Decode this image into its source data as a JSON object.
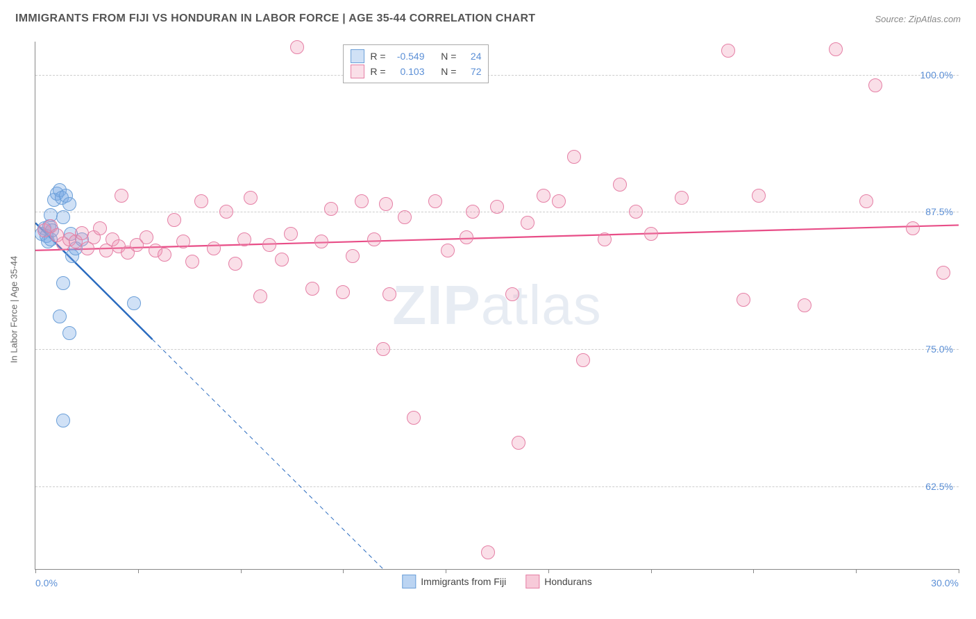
{
  "title": "IMMIGRANTS FROM FIJI VS HONDURAN IN LABOR FORCE | AGE 35-44 CORRELATION CHART",
  "source": "Source: ZipAtlas.com",
  "ylabel": "In Labor Force | Age 35-44",
  "watermark_bold": "ZIP",
  "watermark_rest": "atlas",
  "chart": {
    "type": "scatter",
    "background_color": "#ffffff",
    "grid_color": "#cccccc",
    "axis_color": "#888888",
    "tick_label_color": "#5b8fd6",
    "xlim": [
      0,
      30
    ],
    "ylim": [
      55,
      103
    ],
    "ytick_values": [
      62.5,
      75.0,
      87.5,
      100.0
    ],
    "ytick_labels": [
      "62.5%",
      "75.0%",
      "87.5%",
      "100.0%"
    ],
    "xtick_values": [
      0,
      3.33,
      6.67,
      10,
      13.33,
      16.67,
      20,
      23.33,
      26.67,
      30
    ],
    "xtick_labels_shown": {
      "0": "0.0%",
      "30": "30.0%"
    },
    "marker_radius": 9,
    "marker_stroke_width": 1.5,
    "series": [
      {
        "name": "Immigrants from Fiji",
        "fill": "rgba(120,170,230,0.35)",
        "stroke": "#6b9fd8",
        "r_label": "R =",
        "r_value": "-0.549",
        "n_label": "N =",
        "n_value": "24",
        "trend": {
          "x1": 0,
          "y1": 86.5,
          "x2": 11.3,
          "y2": 55,
          "solid_until_x": 3.8,
          "stroke": "#2a6bbf",
          "width": 2.5
        },
        "points": [
          [
            0.2,
            85.5
          ],
          [
            0.3,
            86.0
          ],
          [
            0.35,
            85.3
          ],
          [
            0.4,
            84.8
          ],
          [
            0.45,
            86.2
          ],
          [
            0.5,
            85.0
          ],
          [
            0.55,
            85.8
          ],
          [
            0.5,
            87.2
          ],
          [
            0.6,
            88.6
          ],
          [
            0.7,
            89.2
          ],
          [
            0.8,
            89.5
          ],
          [
            0.85,
            88.8
          ],
          [
            0.9,
            87.0
          ],
          [
            1.0,
            89.0
          ],
          [
            1.1,
            88.2
          ],
          [
            1.15,
            85.5
          ],
          [
            1.2,
            83.5
          ],
          [
            1.3,
            84.2
          ],
          [
            0.9,
            81.0
          ],
          [
            1.1,
            76.5
          ],
          [
            0.8,
            78.0
          ],
          [
            3.2,
            79.2
          ],
          [
            0.9,
            68.5
          ],
          [
            1.5,
            85.0
          ]
        ]
      },
      {
        "name": "Hondurans",
        "fill": "rgba(240,150,180,0.30)",
        "stroke": "#e57fa5",
        "r_label": "R =",
        "r_value": "0.103",
        "n_label": "N =",
        "n_value": "72",
        "trend": {
          "x1": 0,
          "y1": 84.0,
          "x2": 30,
          "y2": 86.3,
          "solid_until_x": 30,
          "stroke": "#e84d87",
          "width": 2.2
        },
        "points": [
          [
            0.3,
            85.8
          ],
          [
            0.5,
            86.2
          ],
          [
            0.7,
            85.4
          ],
          [
            0.9,
            84.6
          ],
          [
            1.1,
            85.0
          ],
          [
            1.3,
            84.8
          ],
          [
            1.5,
            85.6
          ],
          [
            1.7,
            84.2
          ],
          [
            1.9,
            85.2
          ],
          [
            2.1,
            86.0
          ],
          [
            2.3,
            84.0
          ],
          [
            2.5,
            85.0
          ],
          [
            2.7,
            84.4
          ],
          [
            2.8,
            89.0
          ],
          [
            3.0,
            83.8
          ],
          [
            3.3,
            84.5
          ],
          [
            3.6,
            85.2
          ],
          [
            3.9,
            84.0
          ],
          [
            4.2,
            83.6
          ],
          [
            4.5,
            86.8
          ],
          [
            4.8,
            84.8
          ],
          [
            5.1,
            83.0
          ],
          [
            5.4,
            88.5
          ],
          [
            5.8,
            84.2
          ],
          [
            6.2,
            87.5
          ],
          [
            6.5,
            82.8
          ],
          [
            6.8,
            85.0
          ],
          [
            7.0,
            88.8
          ],
          [
            7.3,
            79.8
          ],
          [
            7.6,
            84.5
          ],
          [
            8.0,
            83.2
          ],
          [
            8.3,
            85.5
          ],
          [
            8.5,
            102.5
          ],
          [
            9.0,
            80.5
          ],
          [
            9.3,
            84.8
          ],
          [
            9.6,
            87.8
          ],
          [
            10.0,
            80.2
          ],
          [
            10.3,
            83.5
          ],
          [
            10.6,
            88.5
          ],
          [
            11.0,
            85.0
          ],
          [
            11.3,
            75.0
          ],
          [
            11.4,
            88.2
          ],
          [
            11.5,
            80.0
          ],
          [
            12.0,
            87.0
          ],
          [
            12.3,
            68.8
          ],
          [
            13.0,
            88.5
          ],
          [
            13.4,
            84.0
          ],
          [
            14.0,
            85.2
          ],
          [
            14.2,
            87.5
          ],
          [
            14.7,
            56.5
          ],
          [
            15.0,
            88.0
          ],
          [
            15.5,
            80.0
          ],
          [
            15.7,
            66.5
          ],
          [
            16.0,
            86.5
          ],
          [
            16.5,
            89.0
          ],
          [
            17.0,
            88.5
          ],
          [
            17.5,
            92.5
          ],
          [
            17.8,
            74.0
          ],
          [
            18.5,
            85.0
          ],
          [
            19.0,
            90.0
          ],
          [
            19.5,
            87.5
          ],
          [
            20.0,
            85.5
          ],
          [
            21.0,
            88.8
          ],
          [
            22.5,
            102.2
          ],
          [
            23.0,
            79.5
          ],
          [
            23.5,
            89.0
          ],
          [
            25.0,
            79.0
          ],
          [
            26.0,
            102.3
          ],
          [
            27.0,
            88.5
          ],
          [
            27.3,
            99.0
          ],
          [
            28.5,
            86.0
          ],
          [
            29.5,
            82.0
          ]
        ]
      }
    ]
  },
  "legend_bottom": [
    {
      "label": "Immigrants from Fiji",
      "fill": "rgba(120,170,230,0.5)",
      "stroke": "#6b9fd8"
    },
    {
      "label": "Hondurans",
      "fill": "rgba(240,150,180,0.5)",
      "stroke": "#e57fa5"
    }
  ]
}
